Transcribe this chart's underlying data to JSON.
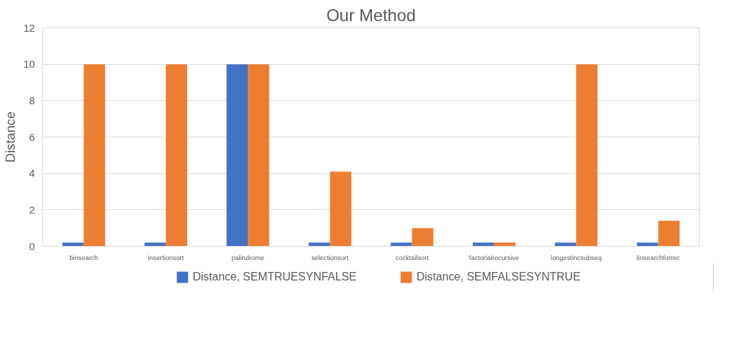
{
  "chart_data": {
    "type": "bar",
    "title": "Our Method",
    "ylabel": "Distance",
    "categories": [
      "binsearch",
      "insertionsort",
      "palindrome",
      "selectionsort",
      "cocktailsort",
      "factorialrecursive",
      "longestincsubseq",
      "linsearchforrec"
    ],
    "series": [
      {
        "name": "Distance, SEMTRUESYNFALSE",
        "color": "#4472c4",
        "values": [
          0.2,
          0.2,
          10,
          0.2,
          0.2,
          0.2,
          0.2,
          0.2
        ]
      },
      {
        "name": "Distance, SEMFALSESYNTRUE",
        "color": "#ed7d31",
        "values": [
          10,
          10,
          10,
          4.1,
          1.0,
          0.2,
          10,
          1.4
        ]
      }
    ],
    "ylim": [
      0,
      12
    ],
    "yticks": [
      0,
      2,
      4,
      6,
      8,
      10,
      12
    ],
    "grid": "y",
    "legend": "bottom"
  }
}
